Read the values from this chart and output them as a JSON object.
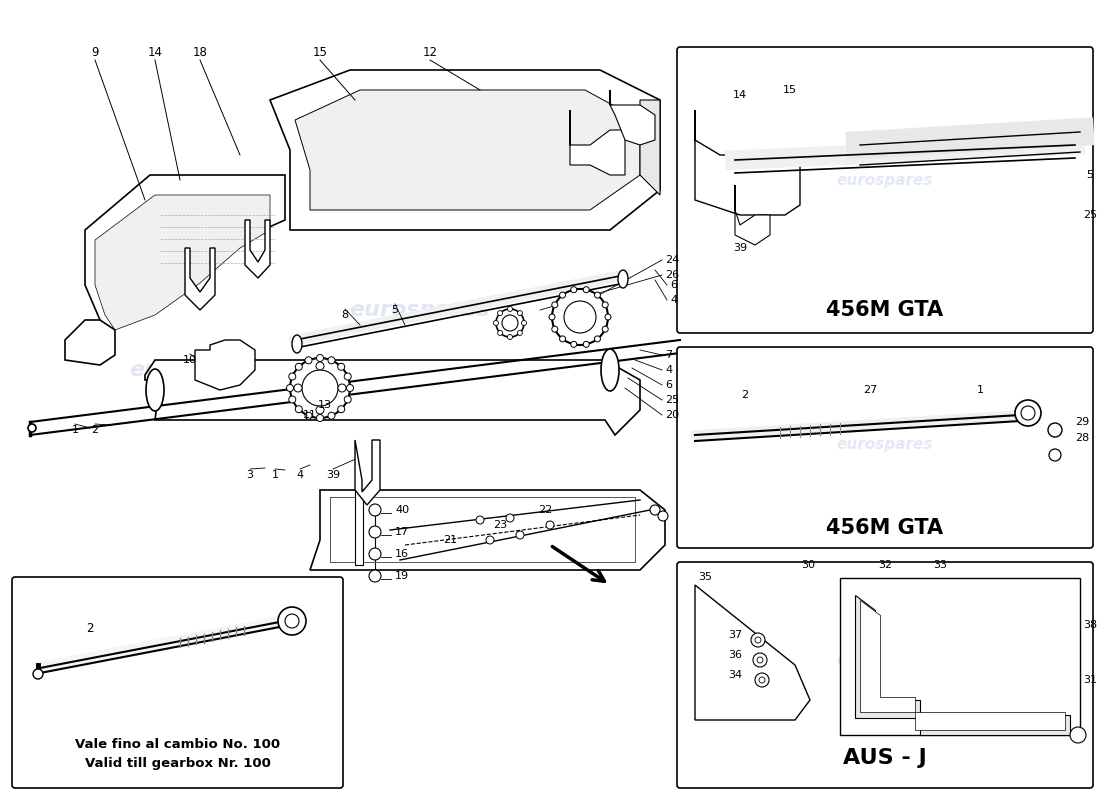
{
  "bg_color": "#ffffff",
  "line_color": "#000000",
  "watermark_color": "#c8d4e8",
  "inset_box1_label1": "Vale fino al cambio No. 100",
  "inset_box1_label2": "Valid till gearbox Nr. 100",
  "inset_box2_label": "456M GTA",
  "inset_box3_label": "456M GTA",
  "inset_box4_label": "AUS - J"
}
